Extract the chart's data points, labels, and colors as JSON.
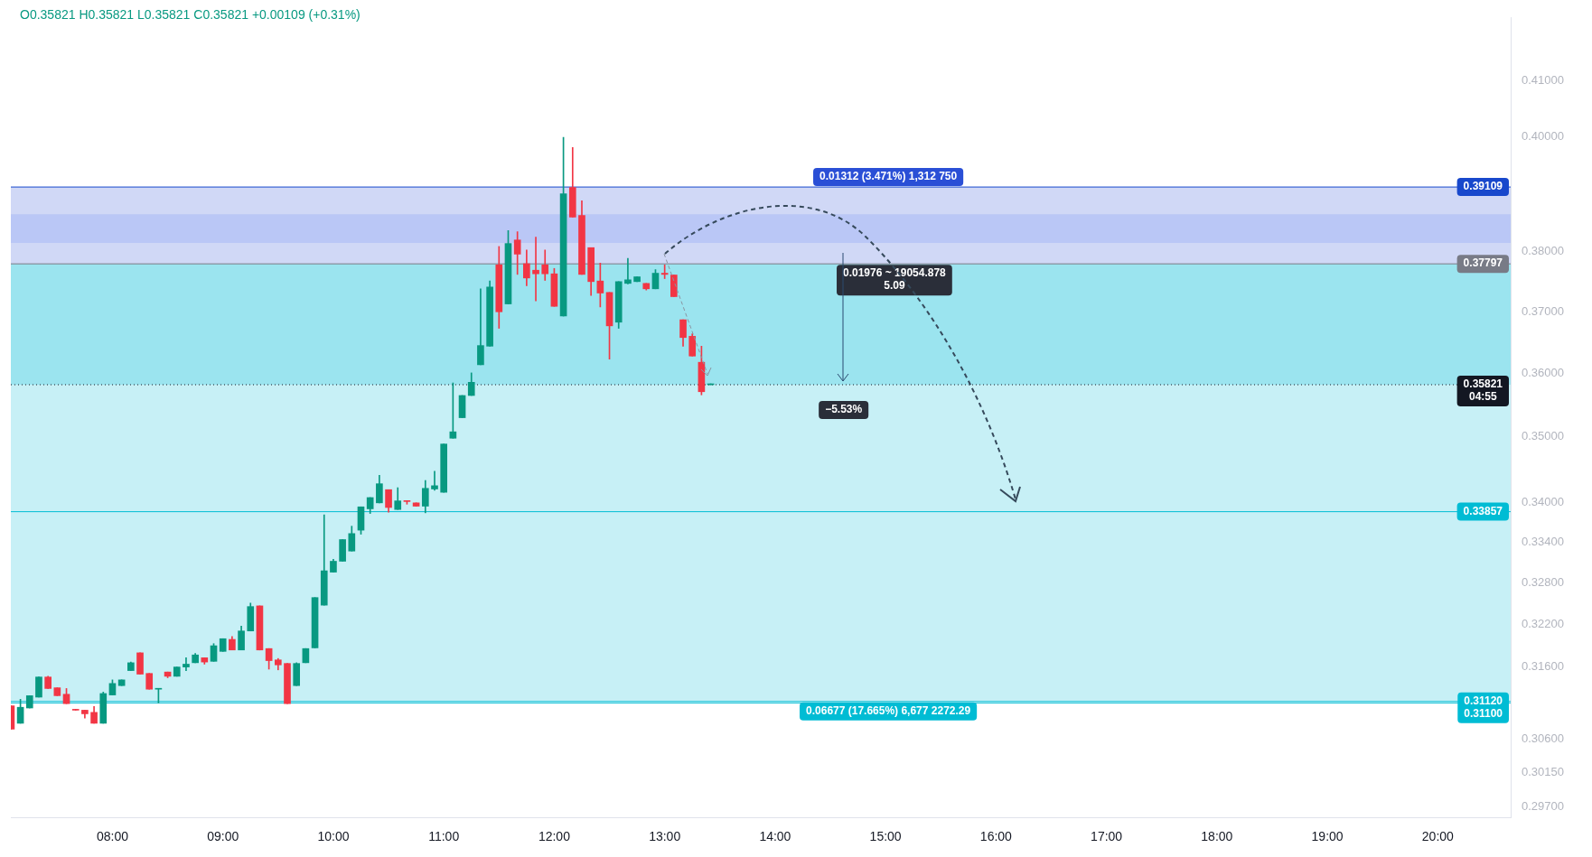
{
  "chart_data": {
    "type": "candlestick",
    "title": "O0.35821 H0.35821 L0.35821 C0.35821 +0.00109 (+0.31%)",
    "x": [
      7.0833,
      7.1667,
      7.25,
      7.3333,
      7.4167,
      7.5,
      7.5833,
      7.6667,
      7.75,
      7.8333,
      7.9167,
      8,
      8.0833,
      8.1667,
      8.25,
      8.3333,
      8.4167,
      8.5,
      8.5833,
      8.6667,
      8.75,
      8.8333,
      8.9167,
      9,
      9.0833,
      9.1667,
      9.25,
      9.3333,
      9.4167,
      9.5,
      9.5833,
      9.6667,
      9.75,
      9.8333,
      9.9167,
      10,
      10.0833,
      10.1667,
      10.25,
      10.3333,
      10.4167,
      10.5,
      10.5833,
      10.6667,
      10.75,
      10.8333,
      10.9167,
      11,
      11.0833,
      11.1667,
      11.25,
      11.3333,
      11.4167,
      11.5,
      11.5833,
      11.6667,
      11.75,
      11.8333,
      11.9167,
      12,
      12.0833,
      12.1667,
      12.25,
      12.3333,
      12.4167,
      12.5,
      12.5833,
      12.6667,
      12.75,
      12.8333,
      12.9167,
      13,
      13.0833,
      13.1667,
      13.25,
      13.3333,
      13.4167
    ],
    "ohlc": [
      [
        0.3106,
        0.3106,
        0.3074,
        0.3074
      ],
      [
        0.3082,
        0.3115,
        0.3082,
        0.3104
      ],
      [
        0.3103,
        0.312,
        0.3103,
        0.312
      ],
      [
        0.3118,
        0.3146,
        0.3118,
        0.3146
      ],
      [
        0.3146,
        0.3147,
        0.313,
        0.313
      ],
      [
        0.3131,
        0.3131,
        0.312,
        0.312
      ],
      [
        0.3122,
        0.313,
        0.3109,
        0.3109
      ],
      [
        0.3101,
        0.3101,
        0.31,
        0.31
      ],
      [
        0.31,
        0.31,
        0.3089,
        0.3095
      ],
      [
        0.3097,
        0.3105,
        0.3082,
        0.3082
      ],
      [
        0.3082,
        0.3125,
        0.3082,
        0.3123
      ],
      [
        0.3121,
        0.3142,
        0.3121,
        0.3137
      ],
      [
        0.3134,
        0.3142,
        0.3134,
        0.3142
      ],
      [
        0.3155,
        0.3167,
        0.3155,
        0.3166
      ],
      [
        0.318,
        0.318,
        0.315,
        0.315
      ],
      [
        0.3151,
        0.3151,
        0.3129,
        0.3129
      ],
      [
        0.3129,
        0.313,
        0.311,
        0.313
      ],
      [
        0.3153,
        0.3153,
        0.3145,
        0.3147
      ],
      [
        0.3147,
        0.316,
        0.3147,
        0.316
      ],
      [
        0.316,
        0.3173,
        0.3155,
        0.3164
      ],
      [
        0.3166,
        0.3179,
        0.3166,
        0.3177
      ],
      [
        0.3173,
        0.3173,
        0.3164,
        0.3167
      ],
      [
        0.3168,
        0.3193,
        0.3168,
        0.319
      ],
      [
        0.3182,
        0.32,
        0.3182,
        0.32
      ],
      [
        0.3199,
        0.3203,
        0.3184,
        0.3184
      ],
      [
        0.3184,
        0.3218,
        0.3184,
        0.3211
      ],
      [
        0.3211,
        0.3251,
        0.3211,
        0.3246
      ],
      [
        0.3247,
        0.3247,
        0.3184,
        0.3184
      ],
      [
        0.3186,
        0.3186,
        0.3157,
        0.3169
      ],
      [
        0.317,
        0.3172,
        0.3156,
        0.3163
      ],
      [
        0.3165,
        0.3165,
        0.3109,
        0.3109
      ],
      [
        0.3134,
        0.3166,
        0.3134,
        0.3165
      ],
      [
        0.3166,
        0.3186,
        0.3166,
        0.3186
      ],
      [
        0.3187,
        0.3259,
        0.3187,
        0.3259
      ],
      [
        0.3248,
        0.3381,
        0.3248,
        0.3298
      ],
      [
        0.3296,
        0.3315,
        0.3296,
        0.3312
      ],
      [
        0.3312,
        0.3344,
        0.3312,
        0.3344
      ],
      [
        0.3327,
        0.3364,
        0.3327,
        0.3353
      ],
      [
        0.3358,
        0.3393,
        0.3352,
        0.3393
      ],
      [
        0.339,
        0.3407,
        0.3383,
        0.3407
      ],
      [
        0.3399,
        0.3441,
        0.3399,
        0.3428
      ],
      [
        0.3419,
        0.3419,
        0.3385,
        0.3392
      ],
      [
        0.3389,
        0.3422,
        0.3389,
        0.3402
      ],
      [
        0.3402,
        0.3402,
        0.3397,
        0.3401
      ],
      [
        0.3399,
        0.3399,
        0.3394,
        0.3394
      ],
      [
        0.3394,
        0.3433,
        0.3384,
        0.3421
      ],
      [
        0.342,
        0.3447,
        0.3418,
        0.3425
      ],
      [
        0.3415,
        0.3489,
        0.3415,
        0.3489
      ],
      [
        0.3498,
        0.3585,
        0.3498,
        0.3508
      ],
      [
        0.353,
        0.3565,
        0.353,
        0.3565
      ],
      [
        0.3565,
        0.3601,
        0.3565,
        0.3586
      ],
      [
        0.3614,
        0.3738,
        0.3614,
        0.3645
      ],
      [
        0.3644,
        0.3751,
        0.3644,
        0.3741
      ],
      [
        0.3778,
        0.3809,
        0.3673,
        0.37
      ],
      [
        0.3713,
        0.3836,
        0.3713,
        0.3814
      ],
      [
        0.382,
        0.3834,
        0.3762,
        0.3796
      ],
      [
        0.378,
        0.3803,
        0.3743,
        0.3756
      ],
      [
        0.3769,
        0.3825,
        0.3718,
        0.3763
      ],
      [
        0.3778,
        0.3803,
        0.3752,
        0.3763
      ],
      [
        0.3763,
        0.3772,
        0.3709,
        0.3709
      ],
      [
        0.3693,
        0.3998,
        0.3693,
        0.3899
      ],
      [
        0.391,
        0.398,
        0.3859,
        0.3859
      ],
      [
        0.3862,
        0.3887,
        0.3762,
        0.3762
      ],
      [
        0.3807,
        0.3807,
        0.3727,
        0.375
      ],
      [
        0.3751,
        0.3781,
        0.3708,
        0.3731
      ],
      [
        0.3732,
        0.3732,
        0.3623,
        0.3677
      ],
      [
        0.3683,
        0.375,
        0.3673,
        0.375
      ],
      [
        0.3747,
        0.3789,
        0.3746,
        0.3753
      ],
      [
        0.375,
        0.3758,
        0.375,
        0.3758
      ],
      [
        0.3747,
        0.3747,
        0.3736,
        0.3738
      ],
      [
        0.3738,
        0.377,
        0.3738,
        0.3764
      ],
      [
        0.3764,
        0.3778,
        0.3755,
        0.3762
      ],
      [
        0.3761,
        0.3761,
        0.3725,
        0.3725
      ],
      [
        0.3687,
        0.3687,
        0.3644,
        0.3658
      ],
      [
        0.366,
        0.3664,
        0.3628,
        0.3628
      ],
      [
        0.3618,
        0.3644,
        0.3566,
        0.3571
      ],
      [
        0.35821,
        0.35821,
        0.35821,
        0.35821
      ]
    ],
    "colors": [
      "#f23645",
      "#089981",
      "#089981",
      "#089981",
      "#f23645",
      "#f23645",
      "#f23645",
      "#f23645",
      "#f23645",
      "#f23645",
      "#089981",
      "#089981",
      "#089981",
      "#089981",
      "#f23645",
      "#f23645",
      "#089981",
      "#f23645",
      "#089981",
      "#089981",
      "#089981",
      "#f23645",
      "#089981",
      "#089981",
      "#f23645",
      "#089981",
      "#089981",
      "#f23645",
      "#f23645",
      "#f23645",
      "#f23645",
      "#089981",
      "#089981",
      "#089981",
      "#089981",
      "#089981",
      "#089981",
      "#089981",
      "#089981",
      "#089981",
      "#089981",
      "#f23645",
      "#089981",
      "#f23645",
      "#f23645",
      "#089981",
      "#089981",
      "#089981",
      "#089981",
      "#089981",
      "#089981",
      "#089981",
      "#089981",
      "#f23645",
      "#089981",
      "#f23645",
      "#f23645",
      "#f23645",
      "#f23645",
      "#f23645",
      "#089981",
      "#f23645",
      "#f23645",
      "#f23645",
      "#f23645",
      "#f23645",
      "#089981",
      "#089981",
      "#089981",
      "#f23645",
      "#089981",
      "#f23645",
      "#f23645",
      "#f23645",
      "#f23645",
      "#f23645",
      "#089981"
    ],
    "xlim": [
      7.08,
      20.66
    ],
    "xticks": [
      {
        "value": 8,
        "label": "08:00"
      },
      {
        "value": 9,
        "label": "09:00"
      },
      {
        "value": 10,
        "label": "10:00"
      },
      {
        "value": 11,
        "label": "11:00"
      },
      {
        "value": 12,
        "label": "12:00"
      },
      {
        "value": 13,
        "label": "13:00"
      },
      {
        "value": 14,
        "label": "14:00"
      },
      {
        "value": 15,
        "label": "15:00"
      },
      {
        "value": 16,
        "label": "16:00"
      },
      {
        "value": 17,
        "label": "17:00"
      },
      {
        "value": 18,
        "label": "18:00"
      },
      {
        "value": 19,
        "label": "19:00"
      },
      {
        "value": 20,
        "label": "20:00"
      }
    ],
    "ylim": [
      0.2956,
      0.4216
    ],
    "yticks": [
      {
        "value": 0.41,
        "label": "0.41000"
      },
      {
        "value": 0.4,
        "label": "0.40000"
      },
      {
        "value": 0.38,
        "label": "0.38000"
      },
      {
        "value": 0.37,
        "label": "0.37000"
      },
      {
        "value": 0.36,
        "label": "0.36000"
      },
      {
        "value": 0.35,
        "label": "0.35000"
      },
      {
        "value": 0.34,
        "label": "0.34000"
      },
      {
        "value": 0.334,
        "label": "0.33400"
      },
      {
        "value": 0.328,
        "label": "0.32800"
      },
      {
        "value": 0.322,
        "label": "0.32200"
      },
      {
        "value": 0.316,
        "label": "0.31600"
      },
      {
        "value": 0.306,
        "label": "0.30600"
      },
      {
        "value": 0.3015,
        "label": "0.30150"
      },
      {
        "value": 0.297,
        "label": "0.29700"
      }
    ],
    "log": true,
    "grid": false,
    "legend": false,
    "ref_lines": [
      {
        "axis": "y",
        "value": 0.39109,
        "label": "0.39109",
        "color": "#1848cc"
      },
      {
        "axis": "y",
        "value": 0.37797,
        "label": "0.37797",
        "color": "#787b86"
      },
      {
        "axis": "y",
        "value": 0.35821,
        "label": "0.35821\n04:55",
        "color": "#131722",
        "line_style": "dotted"
      },
      {
        "axis": "y",
        "value": 0.33857,
        "label": "0.33857",
        "color": "#00bcd4"
      },
      {
        "axis": "y",
        "value": 0.3112,
        "label": "0.31120",
        "color": "#00bcd4"
      },
      {
        "axis": "y",
        "value": 0.311,
        "label": "0.31100",
        "color": "#00bcd4"
      }
    ],
    "bands": [
      {
        "axis": "y",
        "from": 0.37797,
        "to": 0.39109,
        "label": "0.01312 (3.471%) 1,312 750",
        "color": "#2a4fd6"
      },
      {
        "axis": "y",
        "from": 0.3112,
        "to": 0.37797,
        "label": "0.06677 (17.665%) 6,677 2272.29",
        "color": "#00bcd4"
      },
      {
        "axis": "y",
        "from": 0.35821,
        "to": 0.37797,
        "color": "#00bcd4"
      },
      {
        "axis": "y",
        "from": 0.3815,
        "to": 0.3864,
        "color": "#6f8cf5"
      }
    ],
    "annotations": [
      {
        "text": "0.01976 ~ 19054.878\n5.09",
        "x": 15.08,
        "y": 0.37797
      },
      {
        "text": "−5.53%",
        "x": 14.62,
        "y": 0.35821
      }
    ]
  }
}
